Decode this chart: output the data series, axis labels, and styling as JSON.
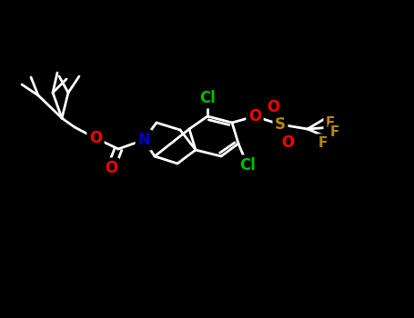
{
  "background_color": "#000000",
  "bond_color": "#ffffff",
  "atom_colors": {
    "C": "#ffffff",
    "N": "#0000cd",
    "O": "#ff0000",
    "Cl": "#00bb00",
    "S": "#b8860b",
    "F": "#b8860b"
  },
  "bond_width": 2.0,
  "font_size": 11,
  "fig_width": 4.55,
  "fig_height": 3.5,
  "dpi": 100
}
